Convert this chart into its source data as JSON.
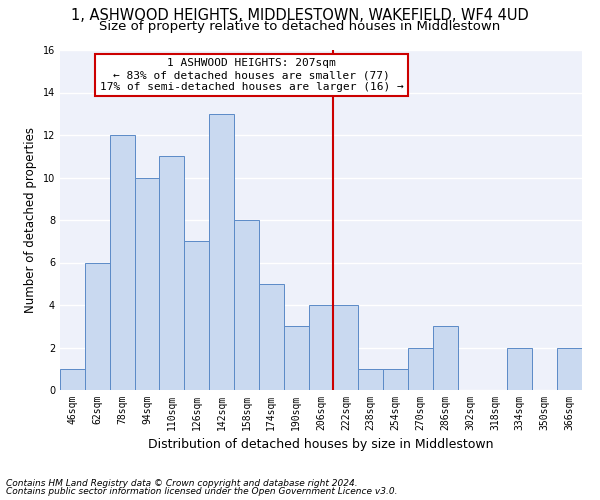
{
  "title1": "1, ASHWOOD HEIGHTS, MIDDLESTOWN, WAKEFIELD, WF4 4UD",
  "title2": "Size of property relative to detached houses in Middlestown",
  "xlabel": "Distribution of detached houses by size in Middlestown",
  "ylabel": "Number of detached properties",
  "footnote1": "Contains HM Land Registry data © Crown copyright and database right 2024.",
  "footnote2": "Contains public sector information licensed under the Open Government Licence v3.0.",
  "bin_labels": [
    "46sqm",
    "62sqm",
    "78sqm",
    "94sqm",
    "110sqm",
    "126sqm",
    "142sqm",
    "158sqm",
    "174sqm",
    "190sqm",
    "206sqm",
    "222sqm",
    "238sqm",
    "254sqm",
    "270sqm",
    "286sqm",
    "302sqm",
    "318sqm",
    "334sqm",
    "350sqm",
    "366sqm"
  ],
  "bar_heights": [
    1,
    6,
    12,
    10,
    11,
    7,
    13,
    8,
    5,
    3,
    4,
    4,
    1,
    1,
    2,
    3,
    0,
    0,
    2,
    0,
    2
  ],
  "bar_color": "#c9d9f0",
  "bar_edge_color": "#5b8ac7",
  "vline_x": 10.5,
  "vline_color": "#cc0000",
  "annotation_line1": "1 ASHWOOD HEIGHTS: 207sqm",
  "annotation_line2": "← 83% of detached houses are smaller (77)",
  "annotation_line3": "17% of semi-detached houses are larger (16) →",
  "annotation_box_color": "#cc0000",
  "ylim": [
    0,
    16
  ],
  "yticks": [
    0,
    2,
    4,
    6,
    8,
    10,
    12,
    14,
    16
  ],
  "background_color": "#eef1fa",
  "grid_color": "#ffffff",
  "title_fontsize": 10.5,
  "subtitle_fontsize": 9.5,
  "ylabel_fontsize": 8.5,
  "xlabel_fontsize": 9,
  "tick_fontsize": 7,
  "annotation_fontsize": 8,
  "footnote_fontsize": 6.5
}
